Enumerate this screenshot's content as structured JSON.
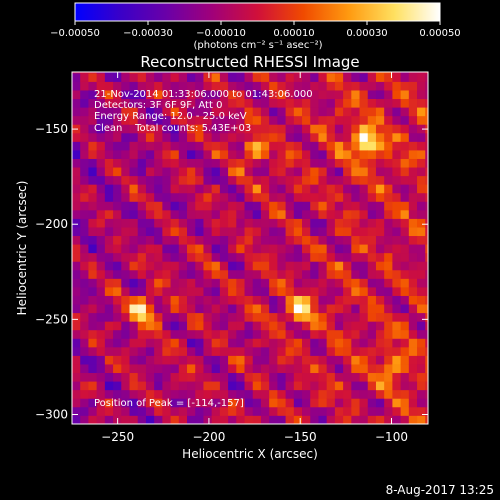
{
  "chart_data": {
    "type": "heatmap",
    "title": "Reconstructed RHESSI Image",
    "xlabel": "Heliocentric X (arcsec)",
    "ylabel": "Heliocentric Y (arcsec)",
    "xlim": [
      -275,
      -80
    ],
    "ylim": [
      -305,
      -120
    ],
    "x_ticks": [
      -250,
      -200,
      -150,
      -100
    ],
    "x_tick_labels": [
      "−250",
      "−200",
      "−150",
      "−100"
    ],
    "y_ticks": [
      -150,
      -200,
      -250,
      -300
    ],
    "y_tick_labels": [
      "−150",
      "−200",
      "−250",
      "−300"
    ],
    "colorbar": {
      "range": [
        -0.0005,
        0.0005
      ],
      "ticks": [
        -0.0005,
        -0.0003,
        -0.0001,
        0.0001,
        0.0003,
        0.0005
      ],
      "tick_labels": [
        "−0.00050",
        "−0.00030",
        "−0.00010",
        "0.00010",
        "0.00030",
        "0.00050"
      ],
      "units_label": "(photons cm⁻² s⁻¹ asec⁻²)",
      "colormap": [
        "#0000ff",
        "#3a00c8",
        "#6a00a8",
        "#a0007a",
        "#d0103a",
        "#f04a00",
        "#ff9a10",
        "#ffe060",
        "#ffffff"
      ]
    },
    "annotations": [
      "21-Nov-2014 01:33:06.000 to 01:43:06.000",
      "Detectors: 3F 6F 9F, Att 0",
      "Energy Range: 12.0 - 25.0 keV",
      "Clean    Total counts: 5.43E+03"
    ],
    "peak_label": "Position of Peak = [-114,-157]",
    "peak": [
      -114,
      -157
    ],
    "bright_sources": [
      {
        "x": -114,
        "y": -157,
        "intensity": 1.0
      },
      {
        "x": -236,
        "y": -245,
        "intensity": 0.85
      },
      {
        "x": -150,
        "y": -245,
        "intensity": 0.7
      },
      {
        "x": -175,
        "y": -160,
        "intensity": 0.55
      },
      {
        "x": -100,
        "y": -275,
        "intensity": 0.5
      }
    ]
  },
  "footer": {
    "date": "8-Aug-2017 13:25"
  }
}
